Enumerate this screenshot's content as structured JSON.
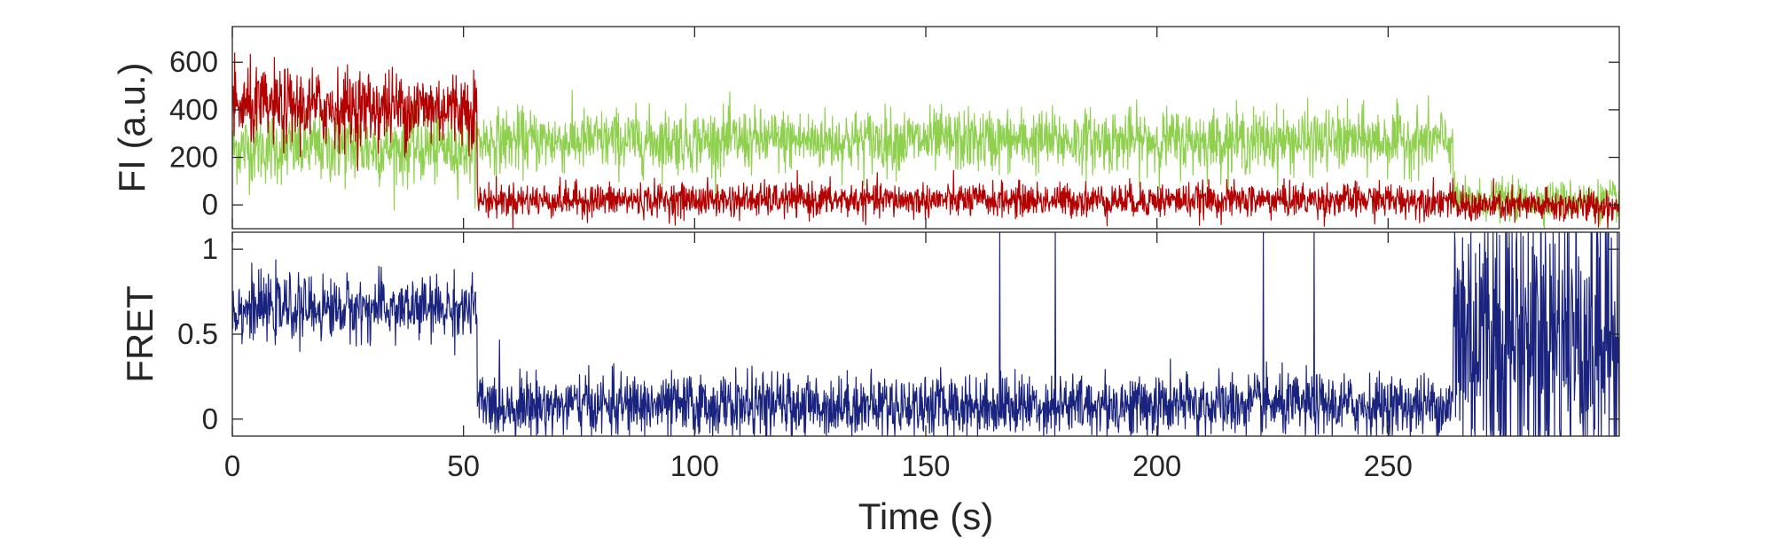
{
  "chart_data": [
    {
      "type": "line",
      "panel": "top",
      "ylabel": "FI (a.u.)",
      "xlim": [
        0,
        300
      ],
      "ylim": [
        -100,
        750
      ],
      "yticks": [
        0,
        200,
        400,
        600
      ],
      "grid": false,
      "series": [
        {
          "name": "",
          "color": "#8fd14f",
          "segments": [
            {
              "x_start": 0,
              "x_end": 53,
              "mean": 240,
              "noise": 75
            },
            {
              "x_start": 53,
              "x_end": 264,
              "mean": 270,
              "noise": 65
            },
            {
              "x_start": 264,
              "x_end": 300,
              "mean": 20,
              "noise": 40
            }
          ]
        },
        {
          "name": "",
          "color": "#b30000",
          "segments": [
            {
              "x_start": 0,
              "x_end": 53,
              "mean": 410,
              "noise": 80
            },
            {
              "x_start": 53,
              "x_end": 264,
              "mean": 20,
              "noise": 35
            },
            {
              "x_start": 264,
              "x_end": 300,
              "mean": -5,
              "noise": 35
            }
          ]
        }
      ]
    },
    {
      "type": "line",
      "panel": "bottom",
      "xlabel": "Time (s)",
      "ylabel": "FRET",
      "xlim": [
        0,
        300
      ],
      "ylim": [
        -0.1,
        1.1
      ],
      "xticks": [
        0,
        50,
        100,
        150,
        200,
        250
      ],
      "yticks": [
        0,
        0.5,
        1
      ],
      "grid": false,
      "series": [
        {
          "name": "",
          "color": "#1a237e",
          "segments": [
            {
              "x_start": 0,
              "x_end": 53,
              "mean": 0.65,
              "noise": 0.09
            },
            {
              "x_start": 53,
              "x_end": 264,
              "mean": 0.08,
              "noise": 0.09
            },
            {
              "x_start": 264,
              "x_end": 300,
              "mean": 0.5,
              "noise": 0.5
            }
          ],
          "spikes_to_max": [
            166,
            178,
            223,
            234
          ]
        }
      ]
    }
  ]
}
